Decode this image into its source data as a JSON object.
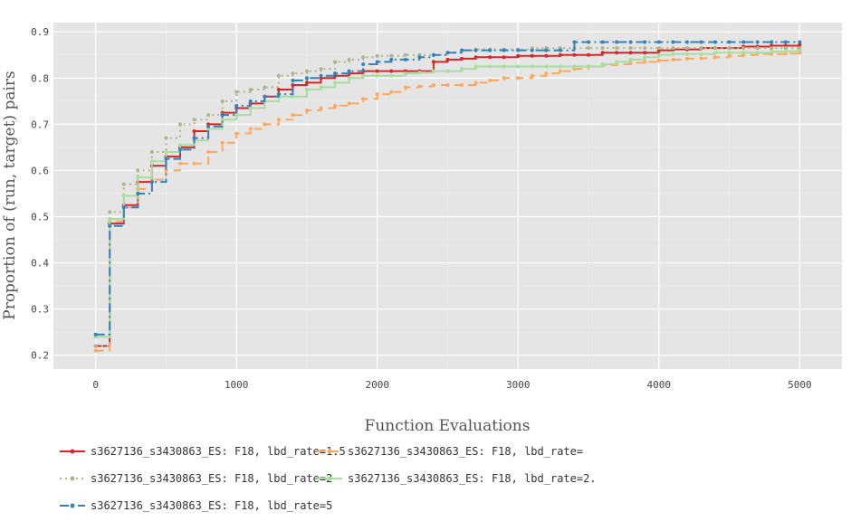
{
  "chart_data": {
    "type": "line",
    "title": "",
    "xlabel": "Function Evaluations",
    "ylabel": "Proportion of (run, target) pairs",
    "xlim": [
      -300,
      5300
    ],
    "ylim": [
      0.17,
      0.92
    ],
    "x_ticks": [
      0,
      1000,
      2000,
      3000,
      4000,
      5000
    ],
    "y_ticks": [
      0.2,
      0.3,
      0.4,
      0.5,
      0.6,
      0.7,
      0.8,
      0.9
    ],
    "x_tick_labels": [
      "0",
      "1000",
      "2000",
      "3000",
      "4000",
      "5000"
    ],
    "y_tick_labels": [
      "0.2",
      "0.3",
      "0.4",
      "0.5",
      "0.6",
      "0.7",
      "0.8",
      "0.9"
    ],
    "grid": true,
    "legend_position": "bottom",
    "step": true,
    "series": [
      {
        "name": "s3627136_s3430863_ES: F18, lbd_rate=1.5",
        "color": "#d62728",
        "dash": "solid",
        "x": [
          0,
          100,
          200,
          300,
          400,
          500,
          600,
          700,
          800,
          900,
          1000,
          1100,
          1200,
          1300,
          1400,
          1500,
          1600,
          1700,
          1800,
          1900,
          2000,
          2100,
          2200,
          2300,
          2400,
          2500,
          2600,
          2700,
          2800,
          2900,
          3000,
          3100,
          3200,
          3300,
          3400,
          3500,
          3600,
          3700,
          3800,
          3900,
          4000,
          4100,
          4200,
          4300,
          4400,
          4500,
          4600,
          4700,
          4800,
          4900,
          5000
        ],
        "y": [
          0.22,
          0.485,
          0.525,
          0.575,
          0.61,
          0.63,
          0.65,
          0.685,
          0.7,
          0.725,
          0.735,
          0.745,
          0.76,
          0.775,
          0.785,
          0.79,
          0.8,
          0.805,
          0.81,
          0.815,
          0.815,
          0.815,
          0.815,
          0.815,
          0.835,
          0.84,
          0.842,
          0.845,
          0.845,
          0.845,
          0.848,
          0.848,
          0.848,
          0.85,
          0.85,
          0.85,
          0.855,
          0.855,
          0.855,
          0.855,
          0.86,
          0.862,
          0.862,
          0.865,
          0.865,
          0.865,
          0.868,
          0.868,
          0.87,
          0.87,
          0.872
        ]
      },
      {
        "name": "s3627136_s3430863_ES: F18, lbd_rate=",
        "color": "#ffa85c",
        "dash": "long",
        "x": [
          0,
          100,
          200,
          300,
          400,
          500,
          600,
          700,
          800,
          900,
          1000,
          1100,
          1200,
          1300,
          1400,
          1500,
          1600,
          1700,
          1800,
          1900,
          2000,
          2100,
          2200,
          2300,
          2400,
          2500,
          2600,
          2700,
          2800,
          2900,
          3000,
          3100,
          3200,
          3300,
          3400,
          3500,
          3600,
          3700,
          3800,
          3900,
          4000,
          4100,
          4200,
          4300,
          4400,
          4500,
          4600,
          4700,
          4800,
          4900,
          5000
        ],
        "y": [
          0.21,
          0.49,
          0.52,
          0.56,
          0.58,
          0.6,
          0.615,
          0.615,
          0.64,
          0.66,
          0.68,
          0.69,
          0.7,
          0.71,
          0.72,
          0.73,
          0.735,
          0.74,
          0.745,
          0.755,
          0.765,
          0.77,
          0.78,
          0.782,
          0.785,
          0.785,
          0.785,
          0.79,
          0.795,
          0.8,
          0.8,
          0.805,
          0.81,
          0.815,
          0.82,
          0.825,
          0.828,
          0.83,
          0.833,
          0.835,
          0.838,
          0.84,
          0.842,
          0.843,
          0.845,
          0.848,
          0.85,
          0.852,
          0.852,
          0.853,
          0.855
        ]
      },
      {
        "name": "s3627136_s3430863_ES: F18, lbd_rate=2",
        "color": "#b0b48a",
        "dash": "dot",
        "x": [
          0,
          100,
          200,
          300,
          400,
          500,
          600,
          700,
          800,
          900,
          1000,
          1100,
          1200,
          1300,
          1400,
          1500,
          1600,
          1700,
          1800,
          1900,
          2000,
          2100,
          2200,
          2300,
          2400,
          2500,
          2600,
          2700,
          2800,
          2900,
          3000,
          3100,
          3200,
          3300,
          3400,
          3500,
          3600,
          3700,
          3800,
          3900,
          4000,
          4100,
          4200,
          4300,
          4400,
          4500,
          4600,
          4700,
          4800,
          4900,
          5000
        ],
        "y": [
          0.22,
          0.51,
          0.57,
          0.6,
          0.64,
          0.67,
          0.7,
          0.71,
          0.72,
          0.75,
          0.77,
          0.775,
          0.78,
          0.805,
          0.81,
          0.815,
          0.82,
          0.835,
          0.84,
          0.845,
          0.848,
          0.848,
          0.85,
          0.85,
          0.85,
          0.855,
          0.86,
          0.862,
          0.862,
          0.862,
          0.862,
          0.865,
          0.865,
          0.865,
          0.865,
          0.865,
          0.865,
          0.865,
          0.865,
          0.865,
          0.865,
          0.865,
          0.865,
          0.865,
          0.865,
          0.865,
          0.865,
          0.865,
          0.865,
          0.865,
          0.865
        ]
      },
      {
        "name": "s3627136_s3430863_ES: F18, lbd_rate=2.",
        "color": "#a8dda0",
        "dash": "solid",
        "x": [
          0,
          100,
          200,
          300,
          400,
          500,
          600,
          700,
          800,
          900,
          1000,
          1100,
          1200,
          1300,
          1400,
          1500,
          1600,
          1700,
          1800,
          1900,
          2000,
          2100,
          2200,
          2300,
          2400,
          2500,
          2600,
          2700,
          2800,
          2900,
          3000,
          3100,
          3200,
          3300,
          3400,
          3500,
          3600,
          3700,
          3800,
          3900,
          4000,
          4100,
          4200,
          4300,
          4400,
          4500,
          4600,
          4700,
          4800,
          4900,
          5000
        ],
        "y": [
          0.24,
          0.495,
          0.545,
          0.585,
          0.62,
          0.64,
          0.655,
          0.665,
          0.69,
          0.71,
          0.72,
          0.735,
          0.75,
          0.76,
          0.76,
          0.775,
          0.78,
          0.79,
          0.8,
          0.805,
          0.805,
          0.805,
          0.81,
          0.812,
          0.815,
          0.815,
          0.82,
          0.825,
          0.825,
          0.825,
          0.825,
          0.825,
          0.825,
          0.825,
          0.825,
          0.825,
          0.83,
          0.835,
          0.84,
          0.845,
          0.85,
          0.852,
          0.852,
          0.852,
          0.855,
          0.855,
          0.855,
          0.855,
          0.857,
          0.858,
          0.86
        ]
      },
      {
        "name": "s3627136_s3430863_ES: F18, lbd_rate=5",
        "color": "#3282bd",
        "dash": "dashdot",
        "x": [
          0,
          100,
          200,
          300,
          400,
          500,
          600,
          700,
          800,
          900,
          1000,
          1100,
          1200,
          1300,
          1400,
          1500,
          1600,
          1700,
          1800,
          1900,
          2000,
          2100,
          2200,
          2300,
          2400,
          2500,
          2600,
          2700,
          2800,
          2900,
          3000,
          3100,
          3200,
          3300,
          3400,
          3500,
          3600,
          3700,
          3800,
          3900,
          4000,
          4100,
          4200,
          4300,
          4400,
          4500,
          4600,
          4700,
          4800,
          4900,
          5000
        ],
        "y": [
          0.245,
          0.48,
          0.52,
          0.55,
          0.575,
          0.625,
          0.645,
          0.67,
          0.695,
          0.72,
          0.74,
          0.75,
          0.76,
          0.765,
          0.795,
          0.8,
          0.805,
          0.81,
          0.815,
          0.83,
          0.835,
          0.84,
          0.84,
          0.845,
          0.85,
          0.855,
          0.86,
          0.86,
          0.86,
          0.86,
          0.86,
          0.86,
          0.86,
          0.86,
          0.878,
          0.878,
          0.878,
          0.878,
          0.878,
          0.878,
          0.878,
          0.878,
          0.878,
          0.878,
          0.878,
          0.878,
          0.878,
          0.878,
          0.878,
          0.878,
          0.878
        ]
      }
    ]
  }
}
